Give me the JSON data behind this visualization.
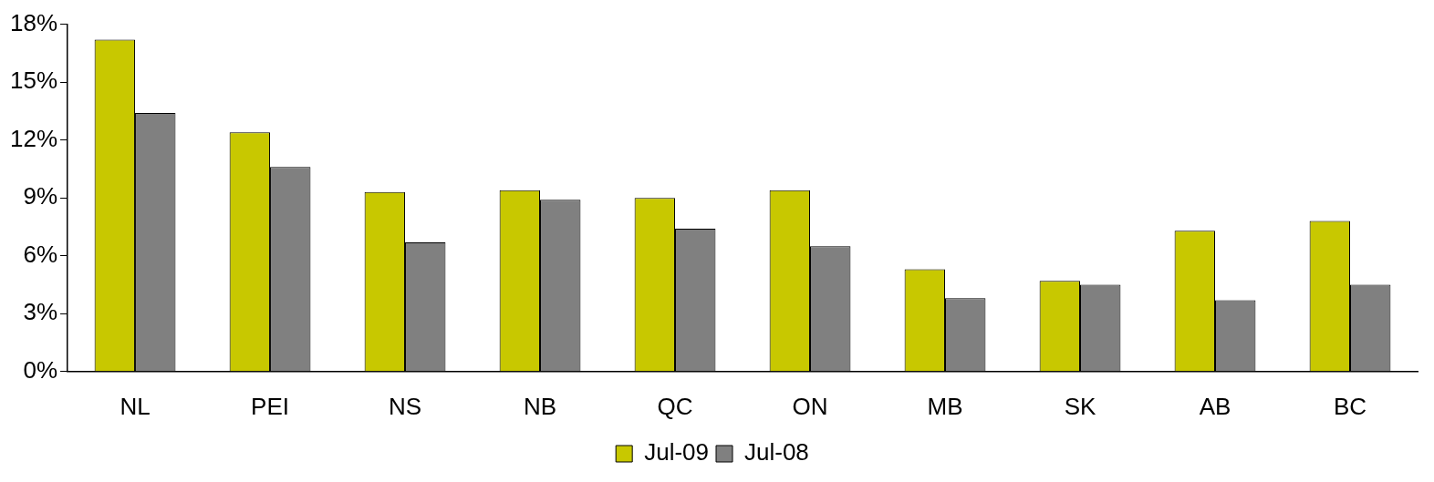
{
  "chart_data": {
    "type": "bar",
    "categories": [
      "NL",
      "PEI",
      "NS",
      "NB",
      "QC",
      "ON",
      "MB",
      "SK",
      "AB",
      "BC"
    ],
    "series": [
      {
        "name": "Jul-09",
        "color": "#c8c800",
        "values": [
          17.2,
          12.4,
          9.3,
          9.4,
          9.0,
          9.4,
          5.3,
          4.7,
          7.3,
          7.8
        ]
      },
      {
        "name": "Jul-08",
        "color": "#808080",
        "values": [
          13.4,
          10.6,
          6.7,
          8.9,
          7.4,
          6.5,
          3.8,
          4.5,
          3.7,
          4.5
        ]
      }
    ],
    "ylim": [
      0,
      18
    ],
    "yticks": [
      {
        "value": 0,
        "label": "0%"
      },
      {
        "value": 3,
        "label": "3%"
      },
      {
        "value": 6,
        "label": "6%"
      },
      {
        "value": 9,
        "label": "9%"
      },
      {
        "value": 12,
        "label": "12%"
      },
      {
        "value": 15,
        "label": "15%"
      },
      {
        "value": 18,
        "label": "18%"
      }
    ],
    "grid": false,
    "legend": "bottom"
  }
}
